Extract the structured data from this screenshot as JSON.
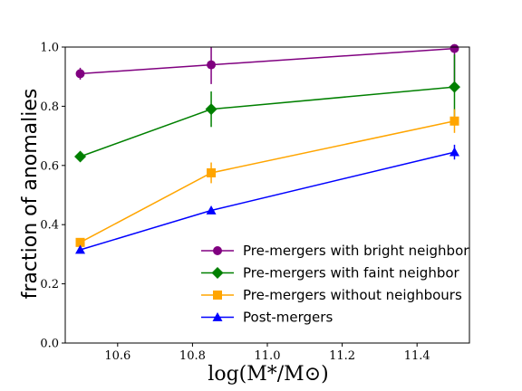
{
  "chart_data": {
    "type": "line",
    "xlabel": "log(M*/M⊙)",
    "ylabel": "fraction of anomalies",
    "xlim": [
      10.46,
      11.54
    ],
    "ylim": [
      0.0,
      1.0
    ],
    "xticks": [
      "10.6",
      "10.8",
      "11.0",
      "11.2",
      "11.4"
    ],
    "xtick_values": [
      10.6,
      10.8,
      11.0,
      11.2,
      11.4
    ],
    "yticks": [
      "0.0",
      "0.2",
      "0.4",
      "0.6",
      "0.8",
      "1.0"
    ],
    "ytick_values": [
      0.0,
      0.2,
      0.4,
      0.6,
      0.8,
      1.0
    ],
    "grid": false,
    "legend_position": "lower-right",
    "series": [
      {
        "name": "Pre-mergers with bright neighbor",
        "color": "#800080",
        "marker": "circle",
        "x": [
          10.5,
          10.85,
          11.5
        ],
        "y": [
          0.91,
          0.94,
          0.995
        ],
        "yerr": [
          0.02,
          0.065,
          0.13
        ]
      },
      {
        "name": "Pre-mergers with faint neighbor",
        "color": "#008000",
        "marker": "diamond",
        "x": [
          10.5,
          10.85,
          11.5
        ],
        "y": [
          0.63,
          0.79,
          0.865
        ],
        "yerr": [
          0.0,
          0.06,
          0.11
        ]
      },
      {
        "name": "Pre-mergers without neighbours",
        "color": "#FFA500",
        "marker": "square",
        "x": [
          10.5,
          10.85,
          11.5
        ],
        "y": [
          0.34,
          0.575,
          0.75
        ],
        "yerr": [
          0.0,
          0.035,
          0.04
        ]
      },
      {
        "name": "Post-mergers",
        "color": "#0000FF",
        "marker": "triangle",
        "x": [
          10.5,
          10.85,
          11.5
        ],
        "y": [
          0.315,
          0.448,
          0.645
        ],
        "yerr": [
          0.0,
          0.0,
          0.025
        ]
      }
    ]
  }
}
